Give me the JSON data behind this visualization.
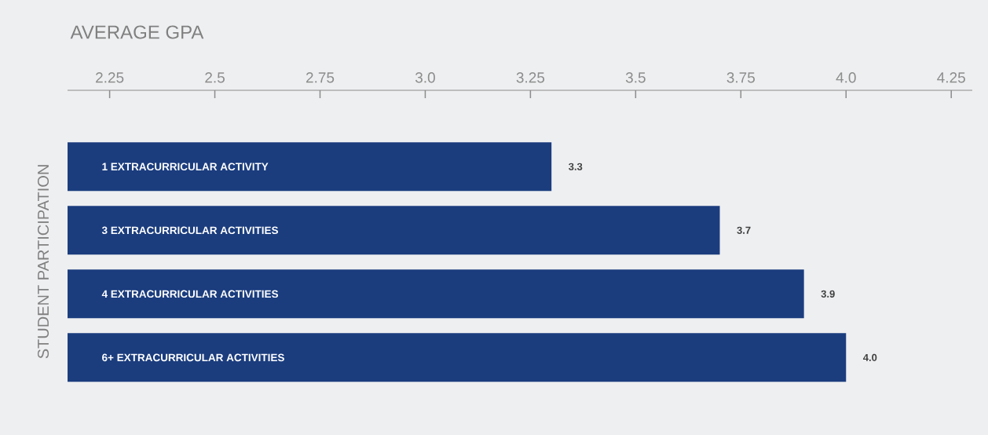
{
  "chart_data": {
    "type": "bar",
    "orientation": "horizontal",
    "xlabel": "AVERAGE GPA",
    "ylabel": "STUDENT PARTICIPATION",
    "categories": [
      "1 EXTRACURRICULAR ACTIVITY",
      "3 EXTRACURRICULAR ACTIVITIES",
      "4 EXTRACURRICULAR ACTIVITIES",
      "6+ EXTRACURRICULAR ACTIVITIES"
    ],
    "values": [
      3.3,
      3.7,
      3.9,
      4.0
    ],
    "color": "#1b3d7e",
    "value_labels": [
      "3.3",
      "3.7",
      "3.9",
      "4.0"
    ],
    "xlim": [
      2.15,
      4.3
    ],
    "xticks": [
      2.25,
      2.5,
      2.75,
      {
        "value": 3.0,
        "label": "3.0"
      },
      3.25,
      3.5,
      3.75,
      {
        "value": 4.0,
        "label": "4.0"
      },
      4.25
    ]
  }
}
